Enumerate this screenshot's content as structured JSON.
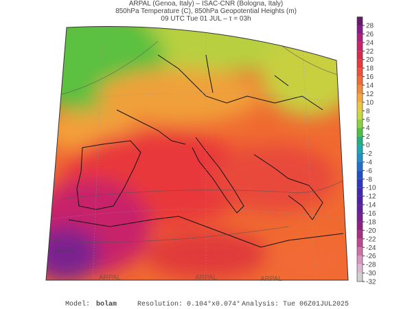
{
  "header": {
    "lines": [
      "ARPAL (Genoa, Italy)  –  ISAC-CNR (Bologna, Italy)",
      "850hPa Temperature (C), 850hPa Geopotential Heights (m)",
      "09 UTC Tue 01 JUL  –  τ = 03h"
    ]
  },
  "colorbar": {
    "ticks": [
      28,
      26,
      24,
      22,
      20,
      18,
      16,
      14,
      12,
      10,
      8,
      6,
      4,
      2,
      0,
      -2,
      -4,
      -6,
      -8,
      -10,
      -12,
      -14,
      -16,
      -18,
      -20,
      -22,
      -24,
      -26,
      -28,
      -30,
      -32
    ],
    "colors": [
      "#6a1a6a",
      "#8b1a8b",
      "#b0207a",
      "#c8246a",
      "#d82a4a",
      "#e83a3a",
      "#f0503a",
      "#f26a36",
      "#f38a3a",
      "#f5a83c",
      "#e8c840",
      "#c8d840",
      "#90d040",
      "#50c040",
      "#20b080",
      "#20a8b0",
      "#2090c8",
      "#2070d0",
      "#2050c8",
      "#3038c0",
      "#4028b0",
      "#5020a8",
      "#6020a0",
      "#7a2090",
      "#902080",
      "#a83080",
      "#c04890",
      "#d070a8",
      "#d898c0",
      "#d8b8d0",
      "#d0d0d0"
    ]
  },
  "watermark": "ARPAL",
  "footer": {
    "model_label": "Model:",
    "model": "bolam",
    "resolution": "Resolution: 0.104°x0.074°",
    "analysis": "Analysis: Tue 06Z01JUL2025"
  }
}
